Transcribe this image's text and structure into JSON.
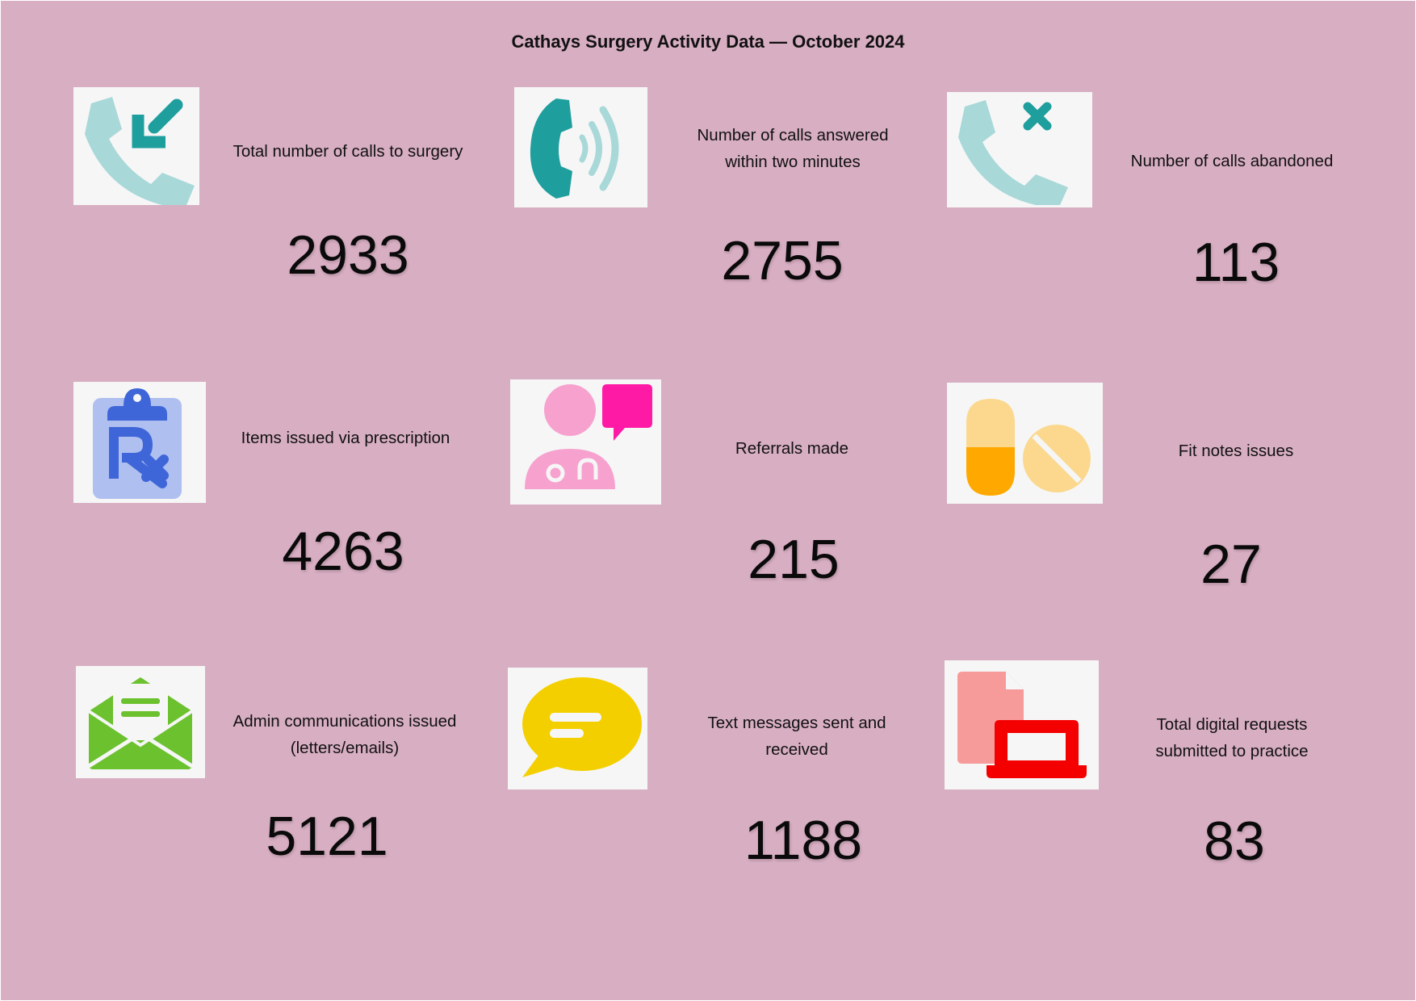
{
  "title": "Cathays Surgery Activity Data — October 2024",
  "tiles": [
    {
      "label": "Total number of calls to surgery",
      "value": "2933",
      "icon": "incoming-call-icon"
    },
    {
      "label": "Number of calls answered\nwithin two minutes",
      "value": "2755",
      "icon": "phone-ringing-icon"
    },
    {
      "label": "Number of calls abandoned",
      "value": "113",
      "icon": "missed-call-icon"
    },
    {
      "label": "Items issued via prescription",
      "value": "4263",
      "icon": "prescription-clipboard-icon"
    },
    {
      "label": "Referrals made",
      "value": "215",
      "icon": "doctor-chat-icon"
    },
    {
      "label": "Fit notes issues",
      "value": "27",
      "icon": "pills-icon"
    },
    {
      "label": "Admin communications issued\n(letters/emails)",
      "value": "5121",
      "icon": "open-envelope-icon"
    },
    {
      "label": "Text messages sent and\nreceived",
      "value": "1188",
      "icon": "speech-bubble-icon"
    },
    {
      "label": "Total digital requests\nsubmitted to practice",
      "value": "83",
      "icon": "document-laptop-icon"
    }
  ],
  "colors": {
    "background": "#d8aec2",
    "teal": "#1f9e9e",
    "light_teal": "#a8d8d8",
    "prescription_blue": "#3f66d8",
    "pink": "#f7a1cf",
    "magenta": "#ff1aa6",
    "orange": "#ffa800",
    "pale_orange": "#fbd88d",
    "green": "#6cc12e",
    "yellow": "#f4cf00",
    "red": "#f50000",
    "salmon": "#f79a9a"
  }
}
